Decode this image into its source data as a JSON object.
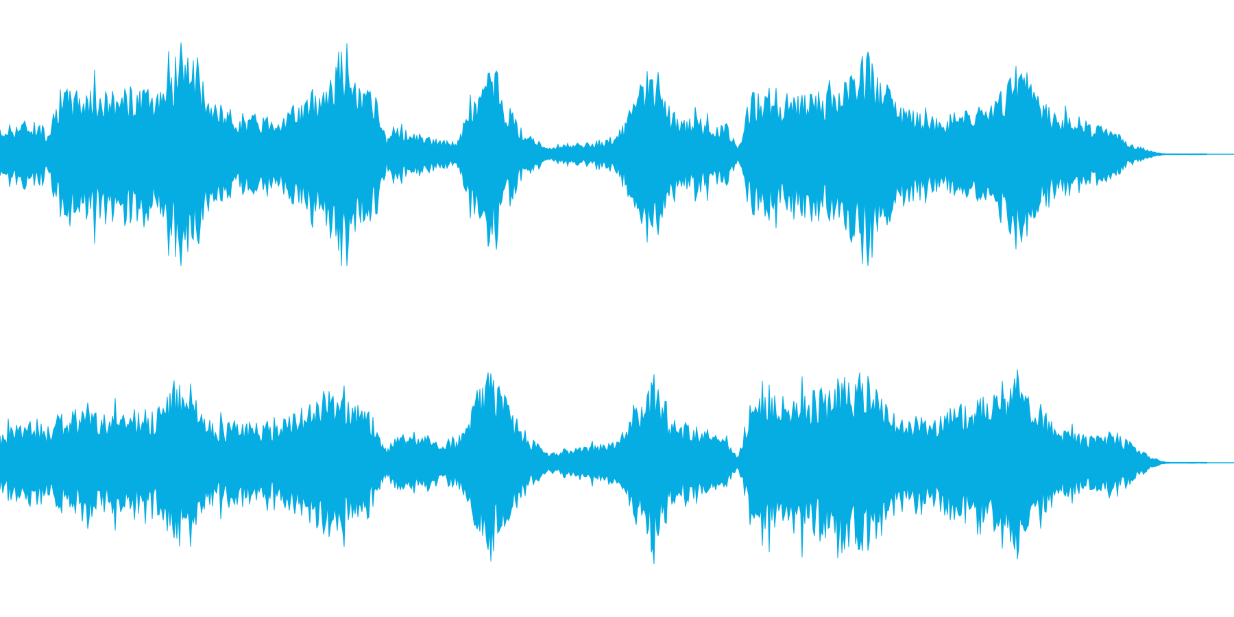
{
  "waveform": {
    "color": "#06adE3",
    "background": "#ffffff",
    "channels": [
      {
        "id": "left",
        "profile": [
          0.22,
          0.28,
          0.3,
          0.3,
          0.22,
          0.55,
          0.58,
          0.6,
          0.58,
          0.56,
          0.58,
          0.6,
          0.55,
          0.58,
          0.72,
          0.85,
          0.95,
          0.7,
          0.48,
          0.42,
          0.38,
          0.36,
          0.35,
          0.36,
          0.38,
          0.42,
          0.5,
          0.58,
          0.7,
          0.98,
          0.68,
          0.58,
          0.52,
          0.12,
          0.25,
          0.2,
          0.16,
          0.14,
          0.12,
          0.12,
          0.4,
          0.62,
          0.82,
          0.55,
          0.3,
          0.18,
          0.1,
          0.06,
          0.1,
          0.1,
          0.1,
          0.12,
          0.14,
          0.22,
          0.45,
          0.68,
          0.78,
          0.45,
          0.3,
          0.35,
          0.32,
          0.3,
          0.28,
          0.05,
          0.52,
          0.55,
          0.58,
          0.55,
          0.52,
          0.5,
          0.55,
          0.58,
          0.62,
          0.72,
          0.92,
          0.7,
          0.55,
          0.4,
          0.38,
          0.36,
          0.34,
          0.36,
          0.38,
          0.4,
          0.44,
          0.5,
          0.62,
          0.88,
          0.6,
          0.48,
          0.4,
          0.36,
          0.33,
          0.3,
          0.26,
          0.2,
          0.14,
          0.08,
          0.04,
          0.01,
          0.0,
          0.0,
          0.0,
          0.0
        ]
      },
      {
        "id": "right",
        "profile": [
          0.24,
          0.35,
          0.38,
          0.38,
          0.3,
          0.42,
          0.45,
          0.46,
          0.46,
          0.44,
          0.45,
          0.48,
          0.46,
          0.45,
          0.55,
          0.72,
          0.82,
          0.5,
          0.36,
          0.35,
          0.36,
          0.36,
          0.37,
          0.38,
          0.4,
          0.44,
          0.52,
          0.6,
          0.66,
          0.72,
          0.55,
          0.46,
          0.42,
          0.1,
          0.32,
          0.28,
          0.24,
          0.22,
          0.2,
          0.22,
          0.48,
          0.68,
          0.82,
          0.6,
          0.4,
          0.26,
          0.16,
          0.08,
          0.12,
          0.14,
          0.14,
          0.16,
          0.18,
          0.24,
          0.48,
          0.66,
          0.78,
          0.45,
          0.32,
          0.34,
          0.3,
          0.26,
          0.24,
          0.05,
          0.52,
          0.58,
          0.62,
          0.6,
          0.58,
          0.6,
          0.64,
          0.66,
          0.7,
          0.76,
          0.86,
          0.62,
          0.46,
          0.4,
          0.4,
          0.42,
          0.44,
          0.46,
          0.5,
          0.54,
          0.6,
          0.66,
          0.74,
          0.84,
          0.62,
          0.48,
          0.38,
          0.3,
          0.26,
          0.24,
          0.22,
          0.28,
          0.22,
          0.14,
          0.07,
          0.02,
          0.0,
          0.0,
          0.0,
          0.0
        ]
      }
    ]
  }
}
